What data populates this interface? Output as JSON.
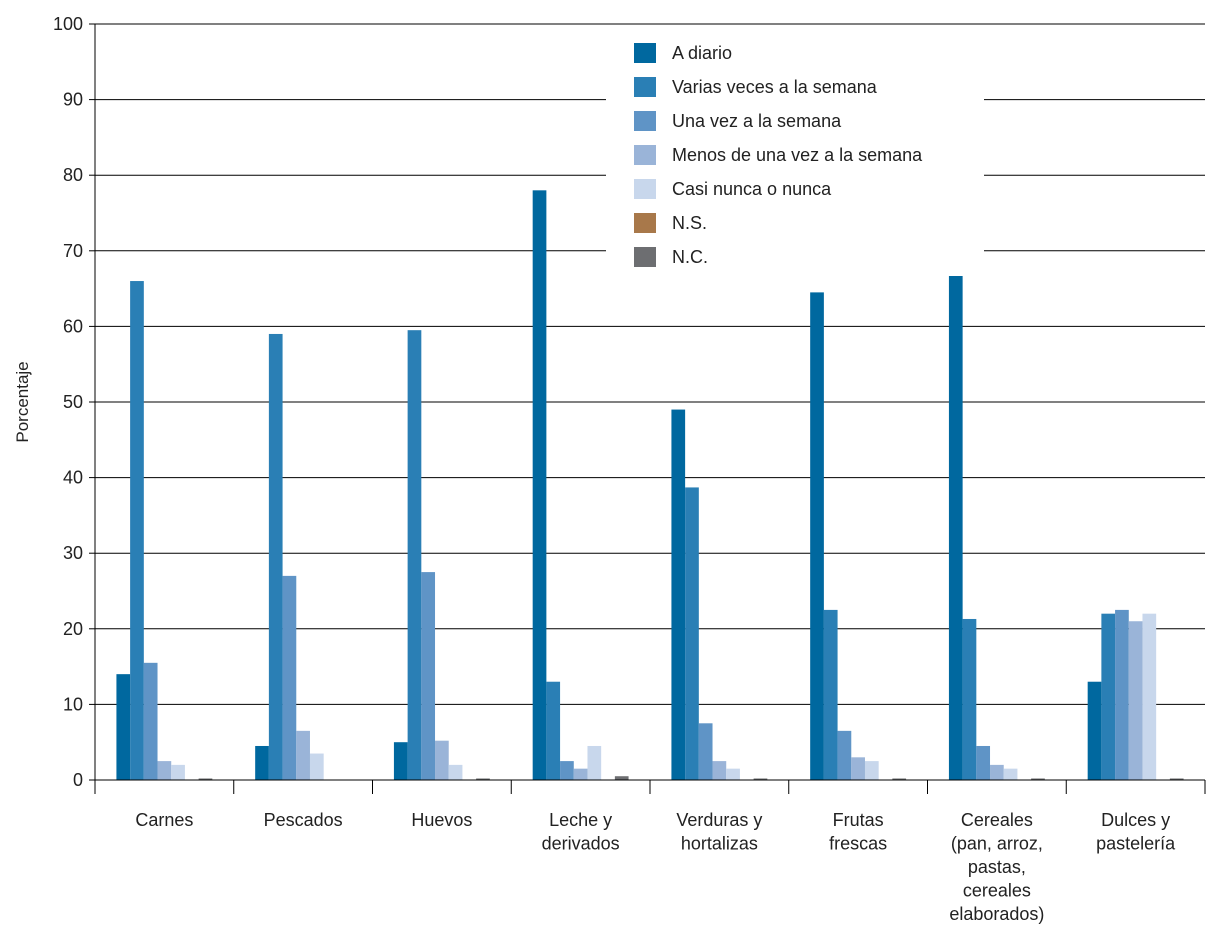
{
  "chart_data": {
    "type": "bar",
    "ylabel": "Porcentaje",
    "xlabel": "",
    "ylim": [
      0,
      100
    ],
    "yticks": [
      "0",
      "10",
      "20",
      "30",
      "40",
      "50",
      "60",
      "70",
      "80",
      "90",
      "100"
    ],
    "grid": true,
    "legend_position": "top-center",
    "categories": [
      [
        "Carnes"
      ],
      [
        "Pescados"
      ],
      [
        "Huevos"
      ],
      [
        "Leche y",
        "derivados"
      ],
      [
        "Verduras y",
        "hortalizas"
      ],
      [
        "Frutas",
        "frescas"
      ],
      [
        "Cereales",
        "(pan, arroz,",
        "pastas,",
        "cereales",
        "elaborados)"
      ],
      [
        "Dulces y",
        "pastelería"
      ]
    ],
    "series": [
      {
        "name": "A diario",
        "color": "#00689f",
        "values": [
          14,
          4.5,
          5,
          78,
          49,
          64.5,
          70.3,
          13
        ]
      },
      {
        "name": "Varias veces a la semana",
        "color": "#2a7fb5",
        "values": [
          66,
          59,
          59.5,
          13,
          38.7,
          22.5,
          21.3,
          22
        ]
      },
      {
        "name": "Una vez a la semana",
        "color": "#5f94c6",
        "values": [
          15.5,
          27,
          27.5,
          2.5,
          7.5,
          6.5,
          4.5,
          22.5
        ]
      },
      {
        "name": "Menos de una vez a la semana",
        "color": "#9ab4d8",
        "values": [
          2.5,
          6.5,
          5.2,
          1.5,
          2.5,
          3,
          2,
          21
        ]
      },
      {
        "name": "Casi nunca o nunca",
        "color": "#c8d7ec",
        "values": [
          2,
          3.5,
          2,
          4.5,
          1.5,
          2.5,
          1.5,
          22
        ]
      },
      {
        "name": "N.S.",
        "color": "#a8784a",
        "values": [
          0,
          0,
          0,
          0,
          0,
          0,
          0,
          0
        ]
      },
      {
        "name": "N.C.",
        "color": "#6d6e71",
        "values": [
          0.2,
          0,
          0.2,
          0.5,
          0.2,
          0.2,
          0.2,
          0.2
        ]
      }
    ]
  }
}
